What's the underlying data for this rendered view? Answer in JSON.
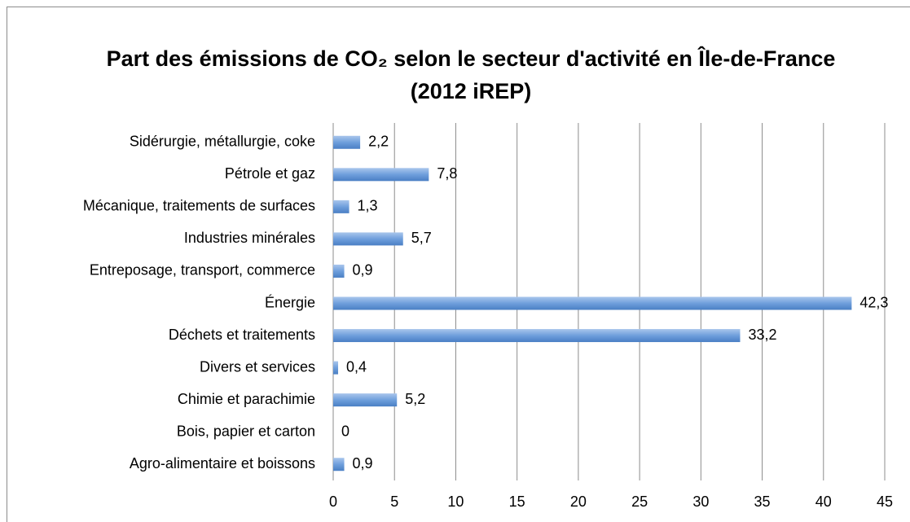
{
  "chart_data": {
    "type": "barh",
    "title": "Part des émissions de CO₂ selon le secteur d'activité en Île-de-France (2012 iREP)",
    "categories": [
      "Sidérurgie, métallurgie, coke",
      "Pétrole et gaz",
      "Mécanique, traitements de surfaces",
      "Industries minérales",
      "Entreposage, transport, commerce",
      "Énergie",
      "Déchets et traitements",
      "Divers et services",
      "Chimie et parachimie",
      "Bois, papier et carton",
      "Agro-alimentaire et boissons"
    ],
    "values": [
      2.2,
      7.8,
      1.3,
      5.7,
      0.9,
      42.3,
      33.2,
      0.4,
      5.2,
      0,
      0.9
    ],
    "value_labels": [
      "2,2",
      "7,8",
      "1,3",
      "5,7",
      "0,9",
      "42,3",
      "33,2",
      "0,4",
      "5,2",
      "0",
      "0,9"
    ],
    "color": "#5b8fd0",
    "xlim": [
      0,
      45
    ],
    "xticks": [
      0,
      5,
      10,
      15,
      20,
      25,
      30,
      35,
      40,
      45
    ],
    "grid": true
  }
}
